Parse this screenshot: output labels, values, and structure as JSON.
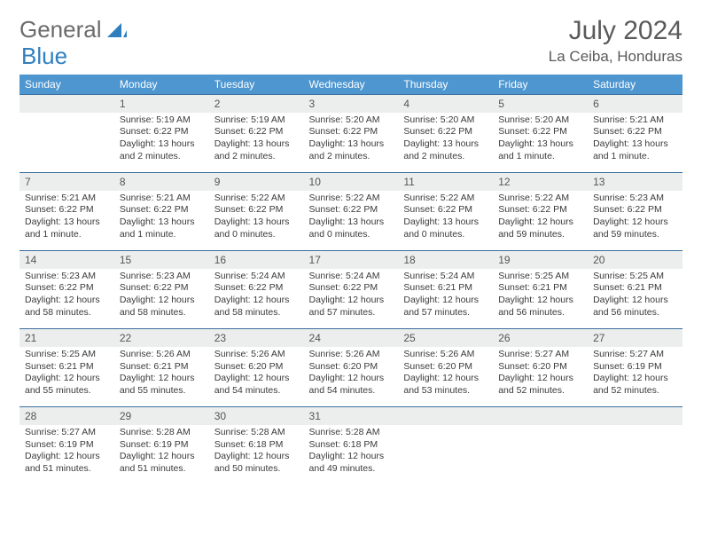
{
  "logo": {
    "text1": "General",
    "text2": "Blue"
  },
  "header": {
    "month_year": "July 2024",
    "location": "La Ceiba, Honduras"
  },
  "colors": {
    "header_bg": "#4d96d0",
    "header_text": "#ffffff",
    "daynum_bg": "#eceded",
    "row_border": "#3a6f9e",
    "logo_gray": "#6b6b6b",
    "logo_blue": "#2f7fbf",
    "body_text": "#3a3a3a"
  },
  "weekdays": [
    "Sunday",
    "Monday",
    "Tuesday",
    "Wednesday",
    "Thursday",
    "Friday",
    "Saturday"
  ],
  "weeks": [
    {
      "nums": [
        "",
        "1",
        "2",
        "3",
        "4",
        "5",
        "6"
      ],
      "cells": [
        {
          "sunrise": "",
          "sunset": "",
          "daylight": ""
        },
        {
          "sunrise": "Sunrise: 5:19 AM",
          "sunset": "Sunset: 6:22 PM",
          "daylight": "Daylight: 13 hours and 2 minutes."
        },
        {
          "sunrise": "Sunrise: 5:19 AM",
          "sunset": "Sunset: 6:22 PM",
          "daylight": "Daylight: 13 hours and 2 minutes."
        },
        {
          "sunrise": "Sunrise: 5:20 AM",
          "sunset": "Sunset: 6:22 PM",
          "daylight": "Daylight: 13 hours and 2 minutes."
        },
        {
          "sunrise": "Sunrise: 5:20 AM",
          "sunset": "Sunset: 6:22 PM",
          "daylight": "Daylight: 13 hours and 2 minutes."
        },
        {
          "sunrise": "Sunrise: 5:20 AM",
          "sunset": "Sunset: 6:22 PM",
          "daylight": "Daylight: 13 hours and 1 minute."
        },
        {
          "sunrise": "Sunrise: 5:21 AM",
          "sunset": "Sunset: 6:22 PM",
          "daylight": "Daylight: 13 hours and 1 minute."
        }
      ]
    },
    {
      "nums": [
        "7",
        "8",
        "9",
        "10",
        "11",
        "12",
        "13"
      ],
      "cells": [
        {
          "sunrise": "Sunrise: 5:21 AM",
          "sunset": "Sunset: 6:22 PM",
          "daylight": "Daylight: 13 hours and 1 minute."
        },
        {
          "sunrise": "Sunrise: 5:21 AM",
          "sunset": "Sunset: 6:22 PM",
          "daylight": "Daylight: 13 hours and 1 minute."
        },
        {
          "sunrise": "Sunrise: 5:22 AM",
          "sunset": "Sunset: 6:22 PM",
          "daylight": "Daylight: 13 hours and 0 minutes."
        },
        {
          "sunrise": "Sunrise: 5:22 AM",
          "sunset": "Sunset: 6:22 PM",
          "daylight": "Daylight: 13 hours and 0 minutes."
        },
        {
          "sunrise": "Sunrise: 5:22 AM",
          "sunset": "Sunset: 6:22 PM",
          "daylight": "Daylight: 13 hours and 0 minutes."
        },
        {
          "sunrise": "Sunrise: 5:22 AM",
          "sunset": "Sunset: 6:22 PM",
          "daylight": "Daylight: 12 hours and 59 minutes."
        },
        {
          "sunrise": "Sunrise: 5:23 AM",
          "sunset": "Sunset: 6:22 PM",
          "daylight": "Daylight: 12 hours and 59 minutes."
        }
      ]
    },
    {
      "nums": [
        "14",
        "15",
        "16",
        "17",
        "18",
        "19",
        "20"
      ],
      "cells": [
        {
          "sunrise": "Sunrise: 5:23 AM",
          "sunset": "Sunset: 6:22 PM",
          "daylight": "Daylight: 12 hours and 58 minutes."
        },
        {
          "sunrise": "Sunrise: 5:23 AM",
          "sunset": "Sunset: 6:22 PM",
          "daylight": "Daylight: 12 hours and 58 minutes."
        },
        {
          "sunrise": "Sunrise: 5:24 AM",
          "sunset": "Sunset: 6:22 PM",
          "daylight": "Daylight: 12 hours and 58 minutes."
        },
        {
          "sunrise": "Sunrise: 5:24 AM",
          "sunset": "Sunset: 6:22 PM",
          "daylight": "Daylight: 12 hours and 57 minutes."
        },
        {
          "sunrise": "Sunrise: 5:24 AM",
          "sunset": "Sunset: 6:21 PM",
          "daylight": "Daylight: 12 hours and 57 minutes."
        },
        {
          "sunrise": "Sunrise: 5:25 AM",
          "sunset": "Sunset: 6:21 PM",
          "daylight": "Daylight: 12 hours and 56 minutes."
        },
        {
          "sunrise": "Sunrise: 5:25 AM",
          "sunset": "Sunset: 6:21 PM",
          "daylight": "Daylight: 12 hours and 56 minutes."
        }
      ]
    },
    {
      "nums": [
        "21",
        "22",
        "23",
        "24",
        "25",
        "26",
        "27"
      ],
      "cells": [
        {
          "sunrise": "Sunrise: 5:25 AM",
          "sunset": "Sunset: 6:21 PM",
          "daylight": "Daylight: 12 hours and 55 minutes."
        },
        {
          "sunrise": "Sunrise: 5:26 AM",
          "sunset": "Sunset: 6:21 PM",
          "daylight": "Daylight: 12 hours and 55 minutes."
        },
        {
          "sunrise": "Sunrise: 5:26 AM",
          "sunset": "Sunset: 6:20 PM",
          "daylight": "Daylight: 12 hours and 54 minutes."
        },
        {
          "sunrise": "Sunrise: 5:26 AM",
          "sunset": "Sunset: 6:20 PM",
          "daylight": "Daylight: 12 hours and 54 minutes."
        },
        {
          "sunrise": "Sunrise: 5:26 AM",
          "sunset": "Sunset: 6:20 PM",
          "daylight": "Daylight: 12 hours and 53 minutes."
        },
        {
          "sunrise": "Sunrise: 5:27 AM",
          "sunset": "Sunset: 6:20 PM",
          "daylight": "Daylight: 12 hours and 52 minutes."
        },
        {
          "sunrise": "Sunrise: 5:27 AM",
          "sunset": "Sunset: 6:19 PM",
          "daylight": "Daylight: 12 hours and 52 minutes."
        }
      ]
    },
    {
      "nums": [
        "28",
        "29",
        "30",
        "31",
        "",
        "",
        ""
      ],
      "cells": [
        {
          "sunrise": "Sunrise: 5:27 AM",
          "sunset": "Sunset: 6:19 PM",
          "daylight": "Daylight: 12 hours and 51 minutes."
        },
        {
          "sunrise": "Sunrise: 5:28 AM",
          "sunset": "Sunset: 6:19 PM",
          "daylight": "Daylight: 12 hours and 51 minutes."
        },
        {
          "sunrise": "Sunrise: 5:28 AM",
          "sunset": "Sunset: 6:18 PM",
          "daylight": "Daylight: 12 hours and 50 minutes."
        },
        {
          "sunrise": "Sunrise: 5:28 AM",
          "sunset": "Sunset: 6:18 PM",
          "daylight": "Daylight: 12 hours and 49 minutes."
        },
        {
          "sunrise": "",
          "sunset": "",
          "daylight": ""
        },
        {
          "sunrise": "",
          "sunset": "",
          "daylight": ""
        },
        {
          "sunrise": "",
          "sunset": "",
          "daylight": ""
        }
      ]
    }
  ]
}
